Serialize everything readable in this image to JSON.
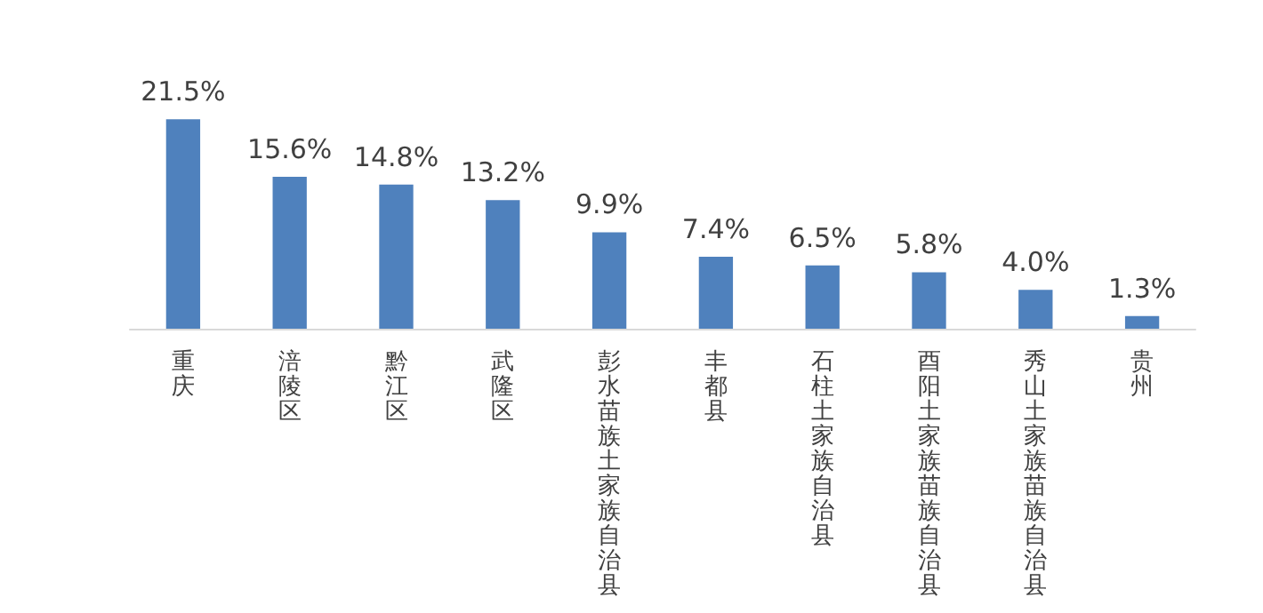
{
  "chart_data": {
    "type": "bar",
    "categories": [
      "重庆",
      "涪陵区",
      "黔江区",
      "武隆区",
      "彭水苗族土家族自治县",
      "丰都县",
      "石柱土家族自治县",
      "酉阳土家族苗族自治县",
      "秀山土家族苗族自治县",
      "贵州"
    ],
    "values": [
      21.5,
      15.6,
      14.8,
      13.2,
      9.9,
      7.4,
      6.5,
      5.8,
      4.0,
      1.3
    ],
    "value_labels": [
      "21.5%",
      "15.6%",
      "14.8%",
      "13.2%",
      "9.9%",
      "7.4%",
      "6.5%",
      "5.8%",
      "4.0%",
      "1.3%"
    ],
    "color": "#4f81bd",
    "grid": false
  }
}
